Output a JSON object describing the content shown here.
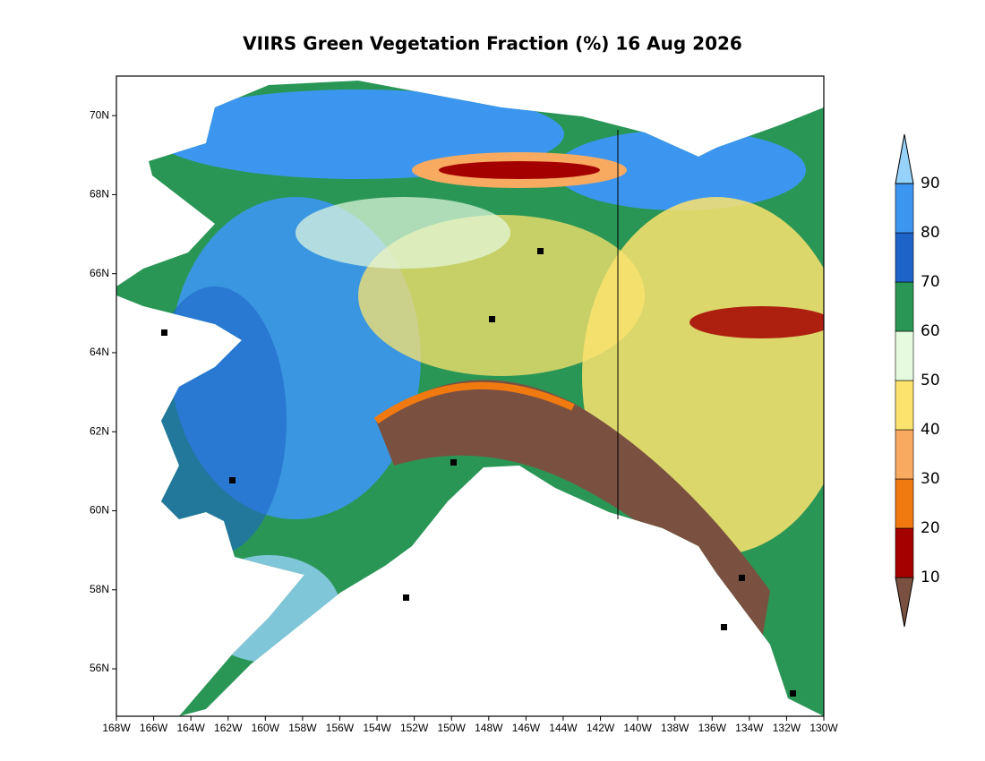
{
  "chart_data": {
    "type": "map",
    "title": "VIIRS Green Vegetation Fraction (%) 16 Aug 2026",
    "xlim": [
      -168,
      -130
    ],
    "ylim": [
      54.8,
      71
    ],
    "xticks": [
      {
        "value": -168,
        "label": "168W"
      },
      {
        "value": -166,
        "label": "166W"
      },
      {
        "value": -164,
        "label": "164W"
      },
      {
        "value": -162,
        "label": "162W"
      },
      {
        "value": -160,
        "label": "160W"
      },
      {
        "value": -158,
        "label": "158W"
      },
      {
        "value": -156,
        "label": "156W"
      },
      {
        "value": -154,
        "label": "154W"
      },
      {
        "value": -152,
        "label": "152W"
      },
      {
        "value": -150,
        "label": "150W"
      },
      {
        "value": -148,
        "label": "148W"
      },
      {
        "value": -146,
        "label": "146W"
      },
      {
        "value": -144,
        "label": "144W"
      },
      {
        "value": -142,
        "label": "142W"
      },
      {
        "value": -140,
        "label": "140W"
      },
      {
        "value": -138,
        "label": "138W"
      },
      {
        "value": -136,
        "label": "136W"
      },
      {
        "value": -134,
        "label": "134W"
      },
      {
        "value": -132,
        "label": "132W"
      },
      {
        "value": -130,
        "label": "130W"
      }
    ],
    "yticks": [
      {
        "value": 56,
        "label": "56N"
      },
      {
        "value": 58,
        "label": "58N"
      },
      {
        "value": 60,
        "label": "60N"
      },
      {
        "value": 62,
        "label": "62N"
      },
      {
        "value": 64,
        "label": "64N"
      },
      {
        "value": 66,
        "label": "66N"
      },
      {
        "value": 68,
        "label": "68N"
      },
      {
        "value": 70,
        "label": "70N"
      }
    ],
    "colorbar": {
      "levels": [
        10,
        20,
        30,
        40,
        50,
        60,
        70,
        80,
        90
      ],
      "colors": [
        "#7a5040",
        "#a50000",
        "#f07a10",
        "#f8aa60",
        "#fce36e",
        "#e6fae0",
        "#2a9656",
        "#1e64c8",
        "#3c96f0",
        "#96d2fa"
      ]
    }
  }
}
